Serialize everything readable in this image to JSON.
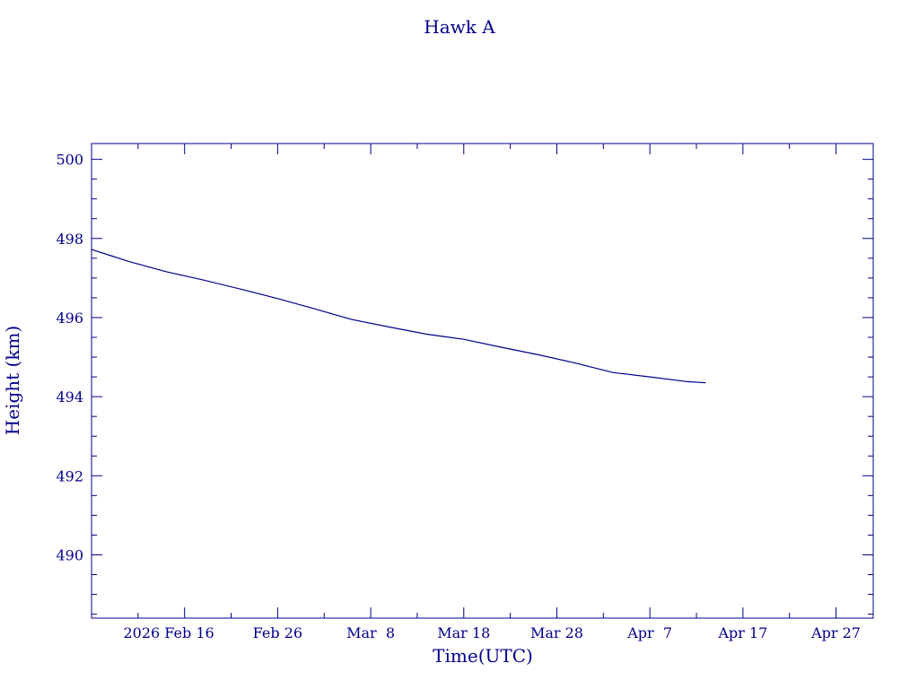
{
  "colors": {
    "ink": "#00008B",
    "background": "#FFFFFF"
  },
  "chart_data": {
    "type": "line",
    "title": "Hawk A",
    "xlabel": "Time(UTC)",
    "ylabel": "Height (km)",
    "x_tick_labels": [
      "2026 Feb 16",
      "Feb 26",
      "Mar  8",
      "Mar 18",
      "Mar 28",
      "Apr  7",
      "Apr 17",
      "Apr 27"
    ],
    "y_tick_labels": [
      "490",
      "492",
      "494",
      "496",
      "498",
      "500"
    ],
    "xlim": [
      "2026-02-06",
      "2026-05-01"
    ],
    "ylim": [
      488.4,
      500.4
    ],
    "grid": false,
    "series": [
      {
        "x": [
          "2026-02-06",
          "2026-02-10",
          "2026-02-14",
          "2026-02-18",
          "2026-02-22",
          "2026-02-26",
          "2026-03-02",
          "2026-03-06",
          "2026-03-10",
          "2026-03-14",
          "2026-03-18",
          "2026-03-22",
          "2026-03-26",
          "2026-03-30",
          "2026-04-03",
          "2026-04-07",
          "2026-04-11",
          "2026-04-13"
        ],
        "y": [
          497.72,
          497.42,
          497.16,
          496.95,
          496.72,
          496.48,
          496.22,
          495.95,
          495.76,
          495.58,
          495.45,
          495.25,
          495.06,
          494.85,
          494.61,
          494.5,
          494.38,
          494.35
        ]
      }
    ]
  }
}
